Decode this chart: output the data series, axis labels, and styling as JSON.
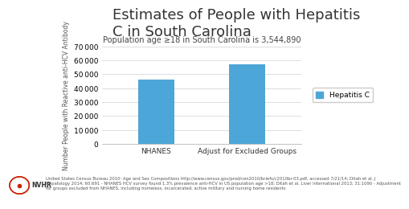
{
  "title": "Estimates of People with Hepatitis\nC in South Carolina",
  "chart_title": "Population age ≥18 in South Carolina is 3,544,890",
  "categories": [
    "NHANES",
    "Adjust for Excluded Groups"
  ],
  "values": [
    46000,
    57000
  ],
  "bar_color": "#4da6d8",
  "ylabel": "Number People with Reactive anti-HCV Antibody",
  "ylim": [
    0,
    70000
  ],
  "yticks": [
    0,
    10000,
    20000,
    30000,
    40000,
    50000,
    60000,
    70000
  ],
  "legend_label": "Hepatitis C",
  "footnote_line1": "United States Census Bureau 2010: Age and Sex Compositions http://www.census.gov/prod/cen2010/briefs/c2010br-03.pdf, accessed 7/21/14; Ditah et al. J",
  "footnote_line2": "Hepatology 2014; 60:691 - NHANES HCV survey found 1.3% prevalence anti-HCV in US population age >18; Ditah et al. Liver International 2013; 31:1090 - Adjustment",
  "footnote_line3": "for groups excluded from NHANES, including homeless, incarcerated, active military and nursing home residents",
  "title_fontsize": 13,
  "chart_title_fontsize": 7,
  "ylabel_fontsize": 5.5,
  "tick_fontsize": 6.5,
  "legend_fontsize": 6.5,
  "footnote_fontsize": 3.8
}
